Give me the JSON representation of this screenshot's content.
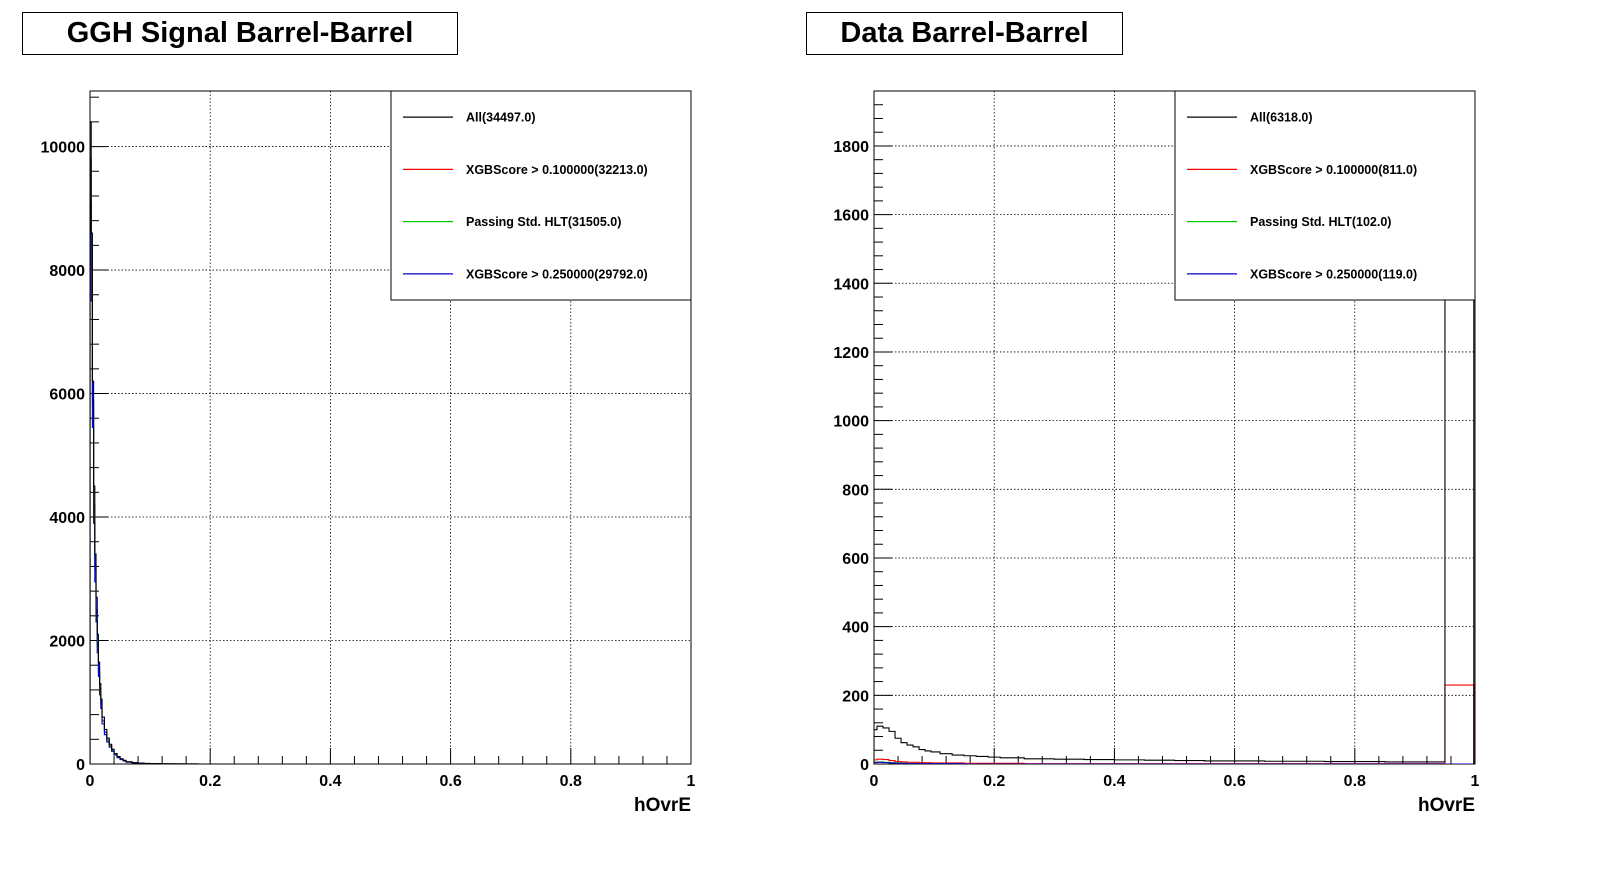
{
  "chart_data": [
    {
      "type": "line",
      "title": "GGH Signal Barrel-Barrel",
      "xlabel": "hOvrE",
      "ylabel": "",
      "xlim": [
        0,
        1
      ],
      "ylim": [
        0,
        10900
      ],
      "xticks": [
        0,
        0.2,
        0.4,
        0.6,
        0.8,
        1
      ],
      "xtick_labels": [
        "0",
        "0.2",
        "0.4",
        "0.6",
        "0.8",
        "1"
      ],
      "yticks": [
        0,
        2000,
        4000,
        6000,
        8000,
        10000
      ],
      "ytick_labels": [
        "0",
        "2000",
        "4000",
        "6000",
        "8000",
        "10000"
      ],
      "grid": true,
      "legend_position": "top-right",
      "series": [
        {
          "name": "All(34497.0)",
          "color": "#000000",
          "x": [
            0.002,
            0.004,
            0.006,
            0.008,
            0.01,
            0.012,
            0.014,
            0.016,
            0.018,
            0.02,
            0.024,
            0.028,
            0.032,
            0.036,
            0.04,
            0.045,
            0.05,
            0.055,
            0.06,
            0.07,
            0.08,
            0.09,
            0.1,
            0.12,
            0.14,
            0.16,
            0.18,
            0.2,
            1.0
          ],
          "y": [
            10400,
            8600,
            6200,
            4500,
            3400,
            2700,
            2100,
            1650,
            1300,
            1050,
            760,
            560,
            420,
            320,
            240,
            170,
            120,
            85,
            60,
            35,
            22,
            14,
            9,
            5,
            3,
            2,
            1,
            0,
            0
          ]
        },
        {
          "name": "XGBScore > 0.100000(32213.0)",
          "color": "#ff0000",
          "x": [
            0.002,
            0.004,
            0.006,
            0.008,
            0.01,
            0.012,
            0.014,
            0.016,
            0.018,
            0.02,
            0.024,
            0.028,
            0.032,
            0.036,
            0.04,
            0.045,
            0.05,
            0.055,
            0.06,
            0.07,
            0.08,
            0.09,
            0.1,
            0.12,
            0.14,
            0.16,
            0.18,
            0.2,
            1.0
          ],
          "y": [
            9800,
            8100,
            5900,
            4200,
            3200,
            2500,
            1950,
            1550,
            1220,
            980,
            710,
            520,
            390,
            300,
            225,
            160,
            112,
            80,
            56,
            33,
            20,
            13,
            8,
            4,
            2,
            1,
            0,
            0,
            0
          ]
        },
        {
          "name": "Passing Std. HLT(31505.0)",
          "color": "#00cc00",
          "x": [
            0.002,
            0.004,
            0.006,
            0.008,
            0.01,
            0.012,
            0.014,
            0.016,
            0.018,
            0.02,
            0.024,
            0.028,
            0.032,
            0.036,
            0.04,
            0.045,
            0.05,
            0.055,
            0.06,
            0.07,
            0.08,
            0.09,
            0.1,
            0.12,
            0.14,
            0.16,
            0.18,
            0.2,
            1.0
          ],
          "y": [
            9750,
            8000,
            5800,
            4150,
            3150,
            2450,
            1900,
            1500,
            1190,
            950,
            690,
            505,
            380,
            290,
            218,
            155,
            108,
            76,
            54,
            32,
            19,
            12,
            7,
            4,
            2,
            1,
            0,
            0,
            0
          ]
        },
        {
          "name": "XGBScore > 0.250000(29792.0)",
          "color": "#0000cc",
          "x": [
            0.002,
            0.004,
            0.006,
            0.008,
            0.01,
            0.012,
            0.014,
            0.016,
            0.018,
            0.02,
            0.024,
            0.028,
            0.032,
            0.036,
            0.04,
            0.045,
            0.05,
            0.055,
            0.06,
            0.07,
            0.08,
            0.09,
            0.1,
            0.12,
            0.14,
            0.16,
            0.18,
            0.2,
            1.0
          ],
          "y": [
            9100,
            7500,
            5450,
            3900,
            2950,
            2300,
            1800,
            1420,
            1120,
            900,
            650,
            475,
            355,
            272,
            205,
            145,
            102,
            72,
            50,
            30,
            18,
            11,
            7,
            4,
            2,
            1,
            1,
            0,
            0
          ]
        }
      ]
    },
    {
      "type": "line",
      "title": "Data Barrel-Barrel",
      "xlabel": "hOvrE",
      "ylabel": "",
      "xlim": [
        0,
        1
      ],
      "ylim": [
        0,
        1960
      ],
      "xticks": [
        0,
        0.2,
        0.4,
        0.6,
        0.8,
        1
      ],
      "xtick_labels": [
        "0",
        "0.2",
        "0.4",
        "0.6",
        "0.8",
        "1"
      ],
      "yticks": [
        0,
        200,
        400,
        600,
        800,
        1000,
        1200,
        1400,
        1600,
        1800
      ],
      "ytick_labels": [
        "0",
        "200",
        "400",
        "600",
        "800",
        "1000",
        "1200",
        "1400",
        "1600",
        "1800"
      ],
      "grid": true,
      "legend_position": "top-right",
      "series": [
        {
          "name": "All(6318.0)",
          "color": "#000000",
          "x": [
            0.005,
            0.015,
            0.025,
            0.035,
            0.045,
            0.055,
            0.065,
            0.075,
            0.085,
            0.095,
            0.11,
            0.13,
            0.15,
            0.17,
            0.19,
            0.21,
            0.25,
            0.3,
            0.35,
            0.4,
            0.45,
            0.5,
            0.55,
            0.6,
            0.65,
            0.7,
            0.75,
            0.8,
            0.85,
            0.9,
            0.95,
            0.998
          ],
          "y": [
            100,
            110,
            105,
            95,
            75,
            62,
            55,
            50,
            42,
            38,
            35,
            30,
            26,
            24,
            22,
            20,
            18,
            15,
            14,
            13,
            12,
            11,
            10,
            9,
            9,
            8,
            8,
            7,
            7,
            6,
            6,
            1900
          ]
        },
        {
          "name": "XGBScore > 0.100000(811.0)",
          "color": "#ff0000",
          "x": [
            0.005,
            0.015,
            0.025,
            0.035,
            0.045,
            0.055,
            0.065,
            0.075,
            0.085,
            0.095,
            0.11,
            0.13,
            0.15,
            0.17,
            0.19,
            0.21,
            0.25,
            0.3,
            0.35,
            0.4,
            0.45,
            0.5,
            0.55,
            0.6,
            0.65,
            0.7,
            0.75,
            0.8,
            0.85,
            0.9,
            0.95,
            0.998
          ],
          "y": [
            12,
            14,
            13,
            10,
            7,
            6,
            5,
            5,
            4,
            4,
            3,
            3,
            3,
            2,
            2,
            2,
            2,
            1,
            1,
            1,
            1,
            1,
            1,
            1,
            1,
            1,
            1,
            1,
            1,
            1,
            1,
            230
          ]
        },
        {
          "name": "Passing Std. HLT(102.0)",
          "color": "#00cc00",
          "x": [
            0.005,
            0.015,
            0.025,
            0.035,
            0.045,
            0.055,
            0.065,
            0.075,
            0.085,
            0.095,
            0.11,
            0.13,
            0.15,
            0.17,
            0.19,
            0.21,
            0.25,
            0.3,
            0.35,
            0.4,
            0.45,
            0.5,
            0.55,
            0.6,
            0.65,
            0.7,
            0.75,
            0.8,
            0.85,
            0.9,
            0.95,
            0.998
          ],
          "y": [
            5,
            6,
            5,
            4,
            3,
            2,
            2,
            1,
            1,
            1,
            1,
            1,
            0,
            0,
            0,
            0,
            0,
            0,
            0,
            0,
            0,
            0,
            0,
            0,
            0,
            0,
            0,
            0,
            0,
            0,
            0,
            0
          ]
        },
        {
          "name": "XGBScore > 0.250000(119.0)",
          "color": "#0000cc",
          "x": [
            0.005,
            0.015,
            0.025,
            0.035,
            0.045,
            0.055,
            0.065,
            0.075,
            0.085,
            0.095,
            0.11,
            0.13,
            0.15,
            0.17,
            0.19,
            0.21,
            0.25,
            0.3,
            0.35,
            0.4,
            0.45,
            0.5,
            0.55,
            0.6,
            0.65,
            0.7,
            0.75,
            0.8,
            0.85,
            0.9,
            0.95,
            0.998
          ],
          "y": [
            4,
            5,
            4,
            3,
            2,
            2,
            1,
            1,
            1,
            1,
            1,
            1,
            1,
            0,
            0,
            0,
            0,
            0,
            0,
            0,
            0,
            0,
            0,
            0,
            0,
            0,
            0,
            0,
            0,
            0,
            0,
            0
          ]
        }
      ]
    }
  ]
}
